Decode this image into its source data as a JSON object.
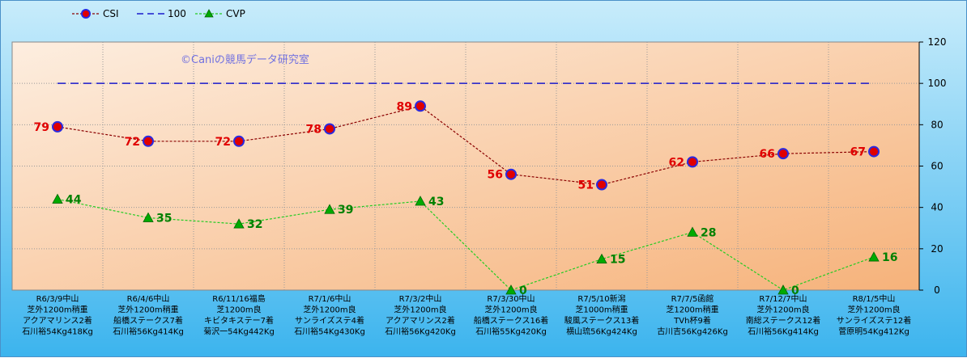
{
  "chart_data": {
    "type": "line",
    "title": "",
    "watermark": "©Caniの競馬データ研究室",
    "xlabel": "",
    "ylabel": "",
    "ylim": [
      0,
      120
    ],
    "yticks": [
      0,
      20,
      40,
      60,
      80,
      100,
      120
    ],
    "grid": true,
    "legend_position": "top-left",
    "categories": [
      [
        "R6/3/9中山",
        "芝外1200m稍重",
        "アクアマリンス2着",
        "石川裕54Kg418Kg"
      ],
      [
        "R6/4/6中山",
        "芝外1200m稍重",
        "船橋ステークス7着",
        "石川裕56Kg414Kg"
      ],
      [
        "R6/11/16福島",
        "芝1200m良",
        "キビタキステー7着",
        "菊沢一54Kg442Kg"
      ],
      [
        "R7/1/6中山",
        "芝外1200m良",
        "サンライズステ4着",
        "石川裕54Kg430Kg"
      ],
      [
        "R7/3/2中山",
        "芝外1200m良",
        "アクアマリンス2着",
        "石川裕56Kg420Kg"
      ],
      [
        "R7/3/30中山",
        "芝外1200m良",
        "船橋ステークス16着",
        "石川裕55Kg420Kg"
      ],
      [
        "R7/5/10新潟",
        "芝1000m稍重",
        "駿風ステークス13着",
        "横山琉56Kg424Kg"
      ],
      [
        "R7/7/5函館",
        "芝1200m稍重",
        "TVh杯9着",
        "古川吉56Kg426Kg"
      ],
      [
        "R7/12/7中山",
        "芝外1200m良",
        "南総ステークス12着",
        "石川裕56Kg414Kg"
      ],
      [
        "R8/1/5中山",
        "芝外1200m良",
        "サンライズステ12着",
        "菅原明54Kg412Kg"
      ]
    ],
    "series": [
      {
        "name": "CSI",
        "color": "#8b0000",
        "marker_color": "#e00000",
        "marker_edge": "#2a2ae0",
        "style": "dotted",
        "values": [
          79,
          72,
          72,
          78,
          89,
          56,
          51,
          62,
          66,
          67
        ]
      },
      {
        "name": "100",
        "color": "#1a1acc",
        "style": "dashed",
        "values": [
          100,
          100,
          100,
          100,
          100,
          100,
          100,
          100,
          100,
          100
        ]
      },
      {
        "name": "CVP",
        "color": "#22cc22",
        "marker_color": "#00aa00",
        "style": "dashed",
        "values": [
          44,
          35,
          32,
          39,
          43,
          0,
          15,
          28,
          0,
          16
        ]
      }
    ]
  }
}
